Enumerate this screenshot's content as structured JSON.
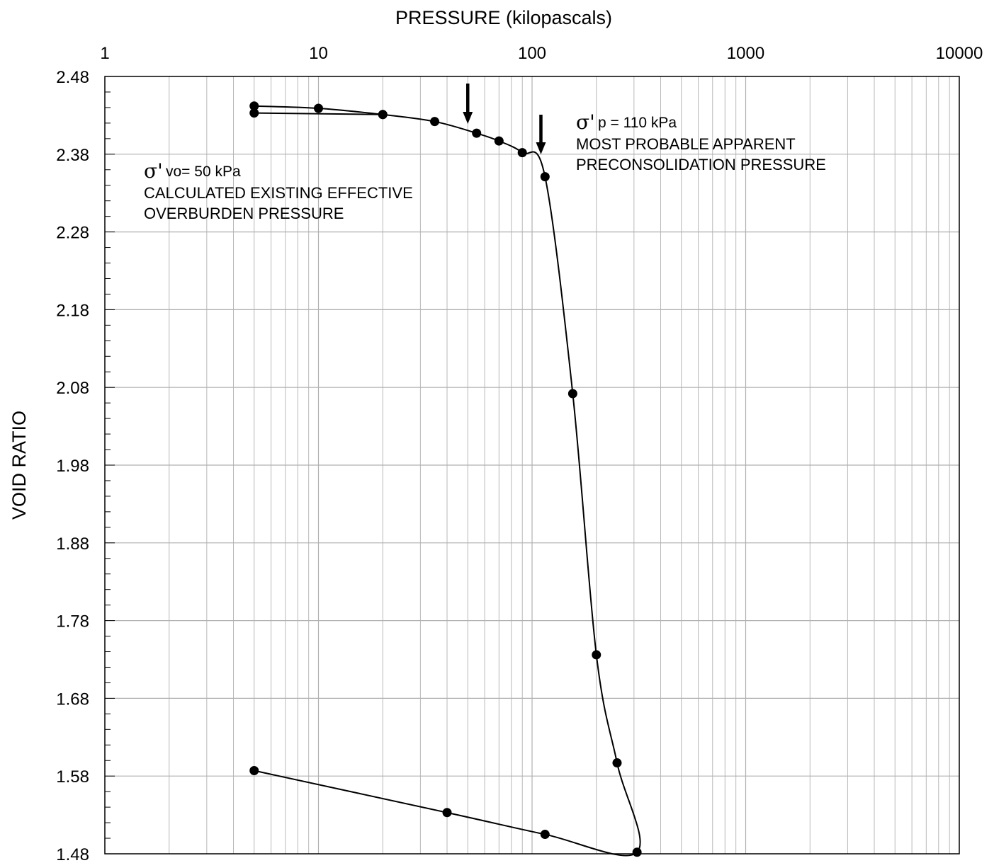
{
  "chart_data": {
    "type": "line",
    "title": "",
    "xlabel": "PRESSURE (kilopascals)",
    "ylabel": "VOID RATIO",
    "x_scale": "log",
    "xlim": [
      1,
      10000
    ],
    "ylim": [
      1.48,
      2.48
    ],
    "x_ticks": [
      "1",
      "10",
      "100",
      "1000",
      "10000"
    ],
    "x_tick_values": [
      1,
      10,
      100,
      1000,
      10000
    ],
    "y_ticks": [
      "2.48",
      "2.38",
      "2.28",
      "2.18",
      "2.08",
      "1.98",
      "1.88",
      "1.78",
      "1.68",
      "1.58",
      "1.48"
    ],
    "y_tick_values": [
      2.48,
      2.38,
      2.28,
      2.18,
      2.08,
      1.98,
      1.88,
      1.78,
      1.68,
      1.58,
      1.48
    ],
    "grid": true,
    "series": [
      {
        "marker": "circle",
        "points": [
          {
            "x": 5,
            "y": 2.442
          },
          {
            "x": 10,
            "y": 2.439
          },
          {
            "x": 20,
            "y": 2.431
          },
          {
            "x": 35,
            "y": 2.422
          },
          {
            "x": 55,
            "y": 2.407
          },
          {
            "x": 70,
            "y": 2.397
          },
          {
            "x": 90,
            "y": 2.382
          },
          {
            "x": 115,
            "y": 2.351
          },
          {
            "x": 155,
            "y": 2.072
          },
          {
            "x": 200,
            "y": 1.736
          },
          {
            "x": 250,
            "y": 1.597
          },
          {
            "x": 310,
            "y": 1.482
          },
          {
            "x": 115,
            "y": 1.505
          },
          {
            "x": 40,
            "y": 1.533
          },
          {
            "x": 5,
            "y": 1.587
          }
        ]
      },
      {
        "marker": "circle",
        "points": [
          {
            "x": 5,
            "y": 2.433
          },
          {
            "x": 20,
            "y": 2.431
          }
        ]
      }
    ],
    "annotations": [
      {
        "symbol": "σ'",
        "subscript": "vo= 50 kPa",
        "lines": [
          "CALCULATED EXISTING EFFECTIVE",
          "OVERBURDEN PRESSURE"
        ],
        "arrow_x": 50
      },
      {
        "symbol": "σ'",
        "subscript": "p = 110 kPa",
        "lines": [
          "MOST PROBABLE APPARENT",
          "PRECONSOLIDATION PRESSURE"
        ],
        "arrow_x": 110
      }
    ]
  },
  "colors": {
    "background": "#ffffff",
    "grid": "#b0b0b0",
    "line": "#000000",
    "marker": "#000000"
  }
}
